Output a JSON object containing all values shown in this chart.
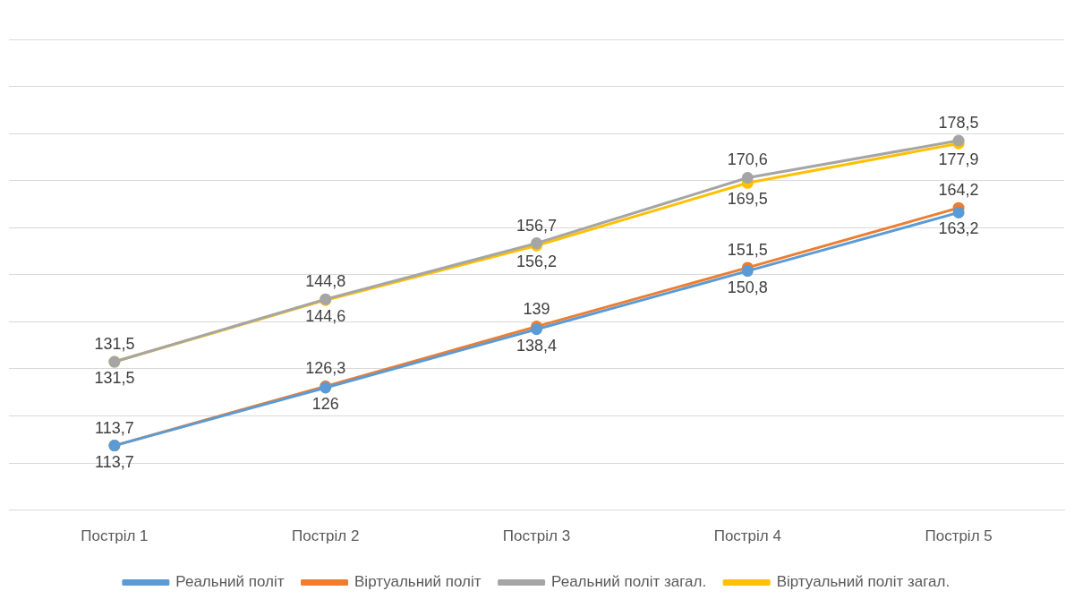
{
  "chart_data": {
    "type": "line",
    "categories": [
      "Постріл 1",
      "Постріл 2",
      "Постріл 3",
      "Постріл 4",
      "Постріл 5"
    ],
    "series": [
      {
        "name": "Реальний політ",
        "color": "#5b9bd5",
        "values": [
          113.7,
          126,
          138.4,
          150.8,
          163.2
        ],
        "value_labels": [
          "113,7",
          "126",
          "138,4",
          "150,8",
          "163,2"
        ]
      },
      {
        "name": "Віртуальний політ",
        "color": "#ed7d31",
        "values": [
          113.7,
          126.3,
          139,
          151.5,
          164.2
        ],
        "value_labels": [
          "113,7",
          "126,3",
          "139",
          "151,5",
          "164,2"
        ]
      },
      {
        "name": "Реальний політ загал.",
        "color": "#a5a5a5",
        "values": [
          131.5,
          144.8,
          156.7,
          170.6,
          178.5
        ],
        "value_labels": [
          "131,5",
          "144,8",
          "156,7",
          "170,6",
          "178,5"
        ]
      },
      {
        "name": "Віртуальний політ загал.",
        "color": "#ffc000",
        "values": [
          131.5,
          144.6,
          156.2,
          169.5,
          177.9
        ],
        "value_labels": [
          "131,5",
          "144,6",
          "156,2",
          "169,5",
          "177,9"
        ]
      }
    ],
    "ylim": [
      100,
      200
    ],
    "yticks": [
      {
        "value": 100,
        "label": null
      },
      {
        "value": 110,
        "label": null
      },
      {
        "value": 120,
        "label": null
      },
      {
        "value": 130,
        "label": null
      },
      {
        "value": 140,
        "label": null
      },
      {
        "value": 150,
        "label": null
      },
      {
        "value": 160,
        "label": null
      },
      {
        "value": 170,
        "label": null
      },
      {
        "value": 180,
        "label": null
      },
      {
        "value": 190,
        "label": null
      },
      {
        "value": 200,
        "label": null
      }
    ],
    "tick_labels": "x",
    "grid": "y",
    "legend": "bottom",
    "marker": "circle",
    "line_style": "solid"
  }
}
